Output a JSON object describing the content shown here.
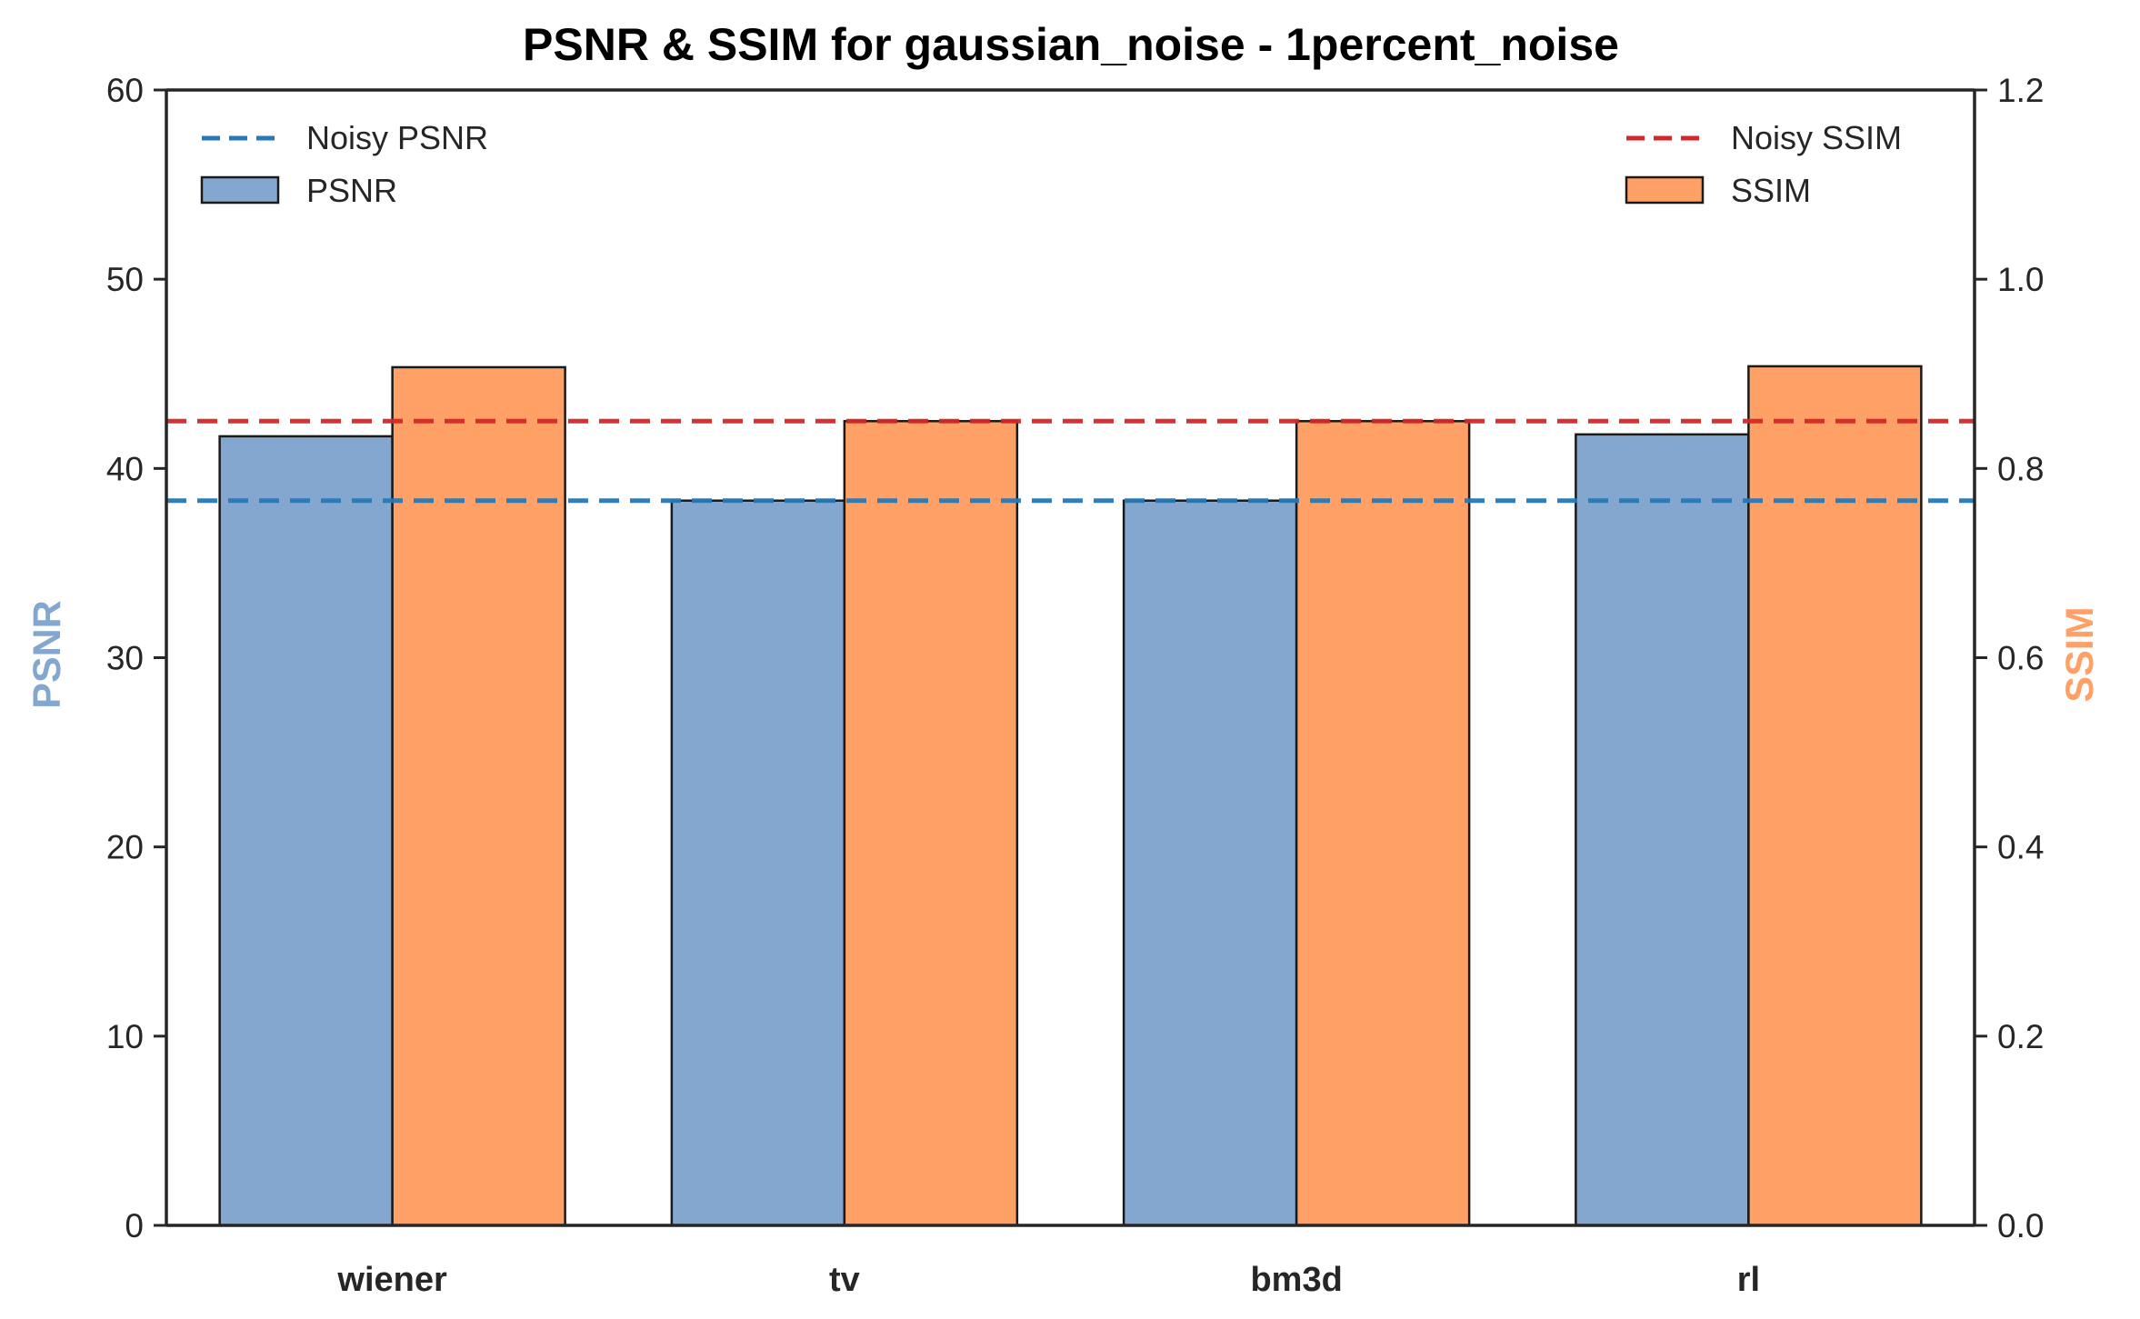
{
  "chart_data": {
    "type": "bar",
    "title": "PSNR & SSIM for gaussian_noise - 1percent_noise",
    "categories": [
      "wiener",
      "tv",
      "bm3d",
      "rl"
    ],
    "series": [
      {
        "name": "PSNR",
        "axis": "left",
        "values": [
          41.7,
          38.3,
          38.3,
          41.8
        ],
        "color": "#84A7D0"
      },
      {
        "name": "SSIM",
        "axis": "right",
        "values": [
          0.907,
          0.85,
          0.85,
          0.908
        ],
        "color": "#FFA066"
      }
    ],
    "reference_lines": [
      {
        "name": "Noisy PSNR",
        "axis": "left",
        "value": 38.3,
        "color": "#2878B5",
        "style": "dashed"
      },
      {
        "name": "Noisy SSIM",
        "axis": "right",
        "value": 0.85,
        "color": "#D62728",
        "style": "dashed"
      }
    ],
    "ylabel_left": "PSNR",
    "ylabel_right": "SSIM",
    "ylim_left": [
      0,
      60
    ],
    "ylim_right": [
      0,
      1.2
    ],
    "yticks_left": [
      "0",
      "10",
      "20",
      "30",
      "40",
      "50",
      "60"
    ],
    "yticks_right": [
      "0.0",
      "0.2",
      "0.4",
      "0.6",
      "0.8",
      "1.0",
      "1.2"
    ],
    "ylabel_left_color": "#84A7D0",
    "ylabel_right_color": "#FFA066",
    "legend_left_placement": "top-left",
    "legend_right_placement": "top-right",
    "grid": false
  }
}
